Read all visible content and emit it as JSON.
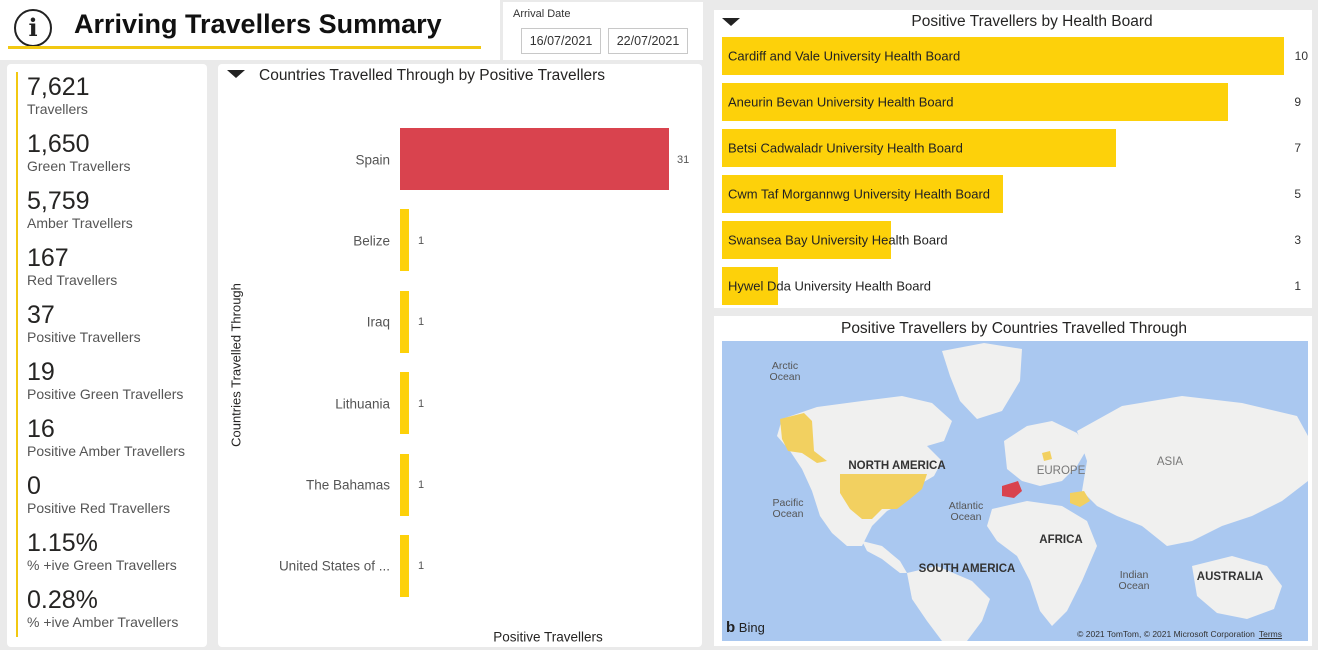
{
  "header": {
    "info_icon": "info-icon",
    "title": "Arriving Travellers Summary",
    "accent": "#f2c811"
  },
  "slicer": {
    "label": "Arrival Date",
    "start": "16/07/2021",
    "end": "22/07/2021"
  },
  "kpis": [
    {
      "value": "7,621",
      "label": "Travellers"
    },
    {
      "value": "1,650",
      "label": "Green Travellers"
    },
    {
      "value": "5,759",
      "label": "Amber Travellers"
    },
    {
      "value": "167",
      "label": "Red Travellers"
    },
    {
      "value": "37",
      "label": "Positive Travellers"
    },
    {
      "value": "19",
      "label": "Positive Green Travellers"
    },
    {
      "value": "16",
      "label": "Positive Amber Travellers"
    },
    {
      "value": "0",
      "label": "Positive Red Travellers"
    },
    {
      "value": "1.15%",
      "label": "% +ive Green Travellers"
    },
    {
      "value": "0.28%",
      "label": "% +ive Amber Travellers"
    }
  ],
  "countries_chart": {
    "title": "Countries Travelled Through by Positive Travellers",
    "y_axis_title": "Countries Travelled Through",
    "x_axis_title": "Positive Travellers",
    "categories": [
      {
        "name": "Spain",
        "value": "31",
        "color": "#d9434e"
      },
      {
        "name": "Belize",
        "value": "1",
        "color": "#fdd10a"
      },
      {
        "name": "Iraq",
        "value": "1",
        "color": "#fdd10a"
      },
      {
        "name": "Lithuania",
        "value": "1",
        "color": "#fdd10a"
      },
      {
        "name": "The Bahamas",
        "value": "1",
        "color": "#fdd10a"
      },
      {
        "name": "United States of ...",
        "value": "1",
        "color": "#fdd10a"
      }
    ]
  },
  "health_board_chart": {
    "title": "Positive Travellers by Health Board",
    "bar_color": "#fdd10a",
    "boards": [
      {
        "name": "Cardiff and Vale University Health Board",
        "value": "10"
      },
      {
        "name": "Aneurin Bevan University Health Board",
        "value": "9"
      },
      {
        "name": "Betsi Cadwaladr University Health Board",
        "value": "7"
      },
      {
        "name": "Cwm Taf Morgannwg University Health Board",
        "value": "5"
      },
      {
        "name": "Swansea Bay University Health Board",
        "value": "3"
      },
      {
        "name": "Hywel Dda University Health Board",
        "value": "1"
      }
    ]
  },
  "map": {
    "title": "Positive Travellers by Countries Travelled Through",
    "ocean_color": "#aac8f0",
    "land_color": "#f0f0ef",
    "highlight_color": "#f2d060",
    "spain_color": "#d9434e",
    "labels": {
      "arctic": "Arctic\nOcean",
      "pacific": "Pacific\nOcean",
      "atlantic": "Atlantic\nOcean",
      "indian": "Indian\nOcean",
      "north_america": "NORTH AMERICA",
      "south_america": "SOUTH AMERICA",
      "europe": "EUROPE",
      "asia": "ASIA",
      "africa": "AFRICA",
      "australia": "AUSTRALIA"
    },
    "bing_label": "Bing",
    "attribution": "© 2021 TomTom, © 2021 Microsoft Corporation",
    "terms": "Terms"
  }
}
